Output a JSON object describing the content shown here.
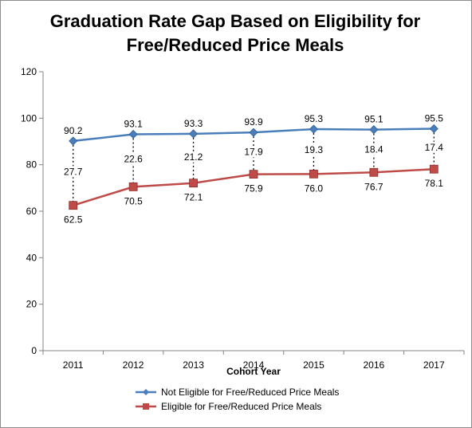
{
  "chart_data": {
    "type": "line",
    "title_line1": "Graduation Rate Gap Based on Eligibility for",
    "title_line2": "Free/Reduced Price Meals",
    "xlabel": "Cohort Year",
    "ylabel": "",
    "categories": [
      "2011",
      "2012",
      "2013",
      "2014",
      "2015",
      "2016",
      "2017"
    ],
    "ylim": [
      0,
      120
    ],
    "yticks": [
      0,
      20,
      40,
      60,
      80,
      100,
      120
    ],
    "series": [
      {
        "name": "Not Eligible for Free/Reduced Price Meals",
        "color": "#4a7ebb",
        "marker": "diamond",
        "values": [
          90.2,
          93.1,
          93.3,
          93.9,
          95.3,
          95.1,
          95.5
        ],
        "labels": [
          "90.2",
          "93.1",
          "93.3",
          "93.9",
          "95.3",
          "95.1",
          "95.5"
        ]
      },
      {
        "name": "Eligible for Free/Reduced Price Meals",
        "color": "#be4b48",
        "marker": "square",
        "values": [
          62.5,
          70.5,
          72.1,
          75.9,
          76.0,
          76.7,
          78.1
        ],
        "labels": [
          "62.5",
          "70.5",
          "72.1",
          "75.9",
          "76.0",
          "76.7",
          "78.1"
        ]
      }
    ],
    "gap_labels": [
      "27.7",
      "22.6",
      "21.2",
      "17.9",
      "19.3",
      "18.4",
      "17.4"
    ],
    "legend_position": "bottom",
    "grid": false
  }
}
